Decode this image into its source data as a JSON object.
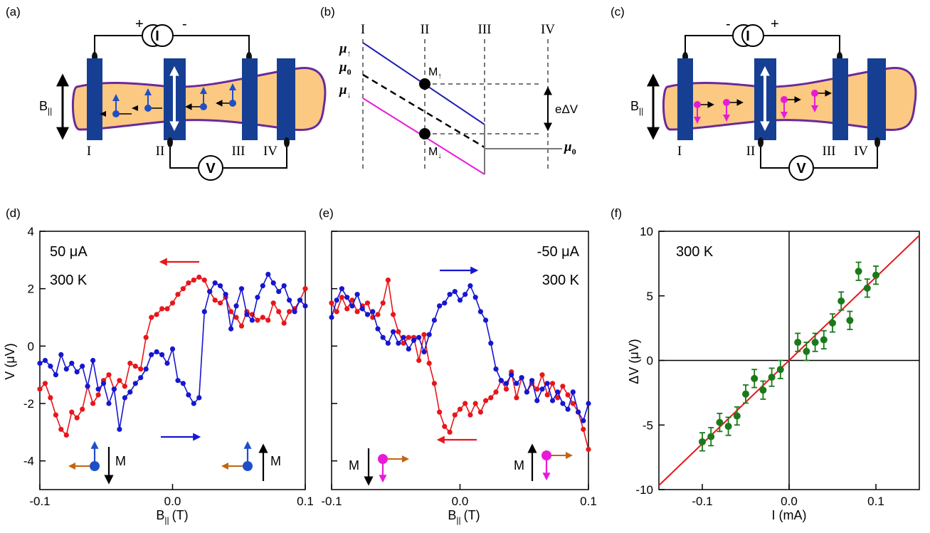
{
  "panels": {
    "a": {
      "label": "(a)",
      "source_plus": "+",
      "source_minus": "-",
      "source_symbol": "I",
      "meter_symbol": "V",
      "field_label_main": "B",
      "field_label_sub": "||",
      "contacts": [
        "I",
        "II",
        "III",
        "IV"
      ]
    },
    "b": {
      "label": "(b)",
      "columns": [
        "I",
        "II",
        "III",
        "IV"
      ],
      "mu_up": "μ",
      "mu_up_sub": "↑",
      "mu_zero": "μ",
      "mu_zero_sub": "0",
      "mu_down": "μ",
      "mu_down_sub": "↓",
      "mu_right": "μ",
      "mu_right_sub": "0",
      "m_up": "M",
      "m_up_sub": "↑",
      "m_down": "M",
      "m_down_sub": "↓",
      "delta_label": "eΔV",
      "colors": {
        "up": "#1f1fb4",
        "down": "#e81ad8",
        "zero": "#000000",
        "dash": "#777777"
      }
    },
    "c": {
      "label": "(c)",
      "source_plus": "+",
      "source_minus": "-",
      "source_symbol": "I",
      "meter_symbol": "V",
      "field_label_main": "B",
      "field_label_sub": "||",
      "contacts": [
        "I",
        "II",
        "III",
        "IV"
      ]
    },
    "d": {
      "label": "(d)",
      "current": "50 μA",
      "temp": "300 K",
      "m_label": "M"
    },
    "e": {
      "label": "(e)",
      "current": "-50 μA",
      "temp": "300 K",
      "m_label": "M"
    },
    "f": {
      "label": "(f)",
      "temp": "300 K"
    }
  },
  "colors": {
    "channel_fill": "#fbc982",
    "channel_stroke": "#6a2a9a",
    "contact": "#163f93",
    "spin_blue": "#1f4fc8",
    "spin_magenta": "#e81ad8",
    "sweep_red": "#e8161a",
    "sweep_blue": "#1616d0",
    "fit_green": "#1a7a1a",
    "arrow_brown": "#c0660e"
  },
  "chart_data": [
    {
      "type": "line",
      "panel": "d",
      "xlabel_main": "B",
      "xlabel_sub": "||",
      "xlabel_unit": "(T)",
      "ylabel": "V (μV)",
      "xlim": [
        -0.1,
        0.1
      ],
      "ylim": [
        -5,
        4
      ],
      "xticks": [
        "-0.1",
        "0.0",
        "0.1"
      ],
      "yticks": [
        "-4",
        "-2",
        "0",
        "2",
        "4"
      ],
      "series": [
        {
          "color": "#e8161a",
          "sweep": "decreasing",
          "x": [
            -0.1,
            -0.096,
            -0.092,
            -0.088,
            -0.084,
            -0.08,
            -0.076,
            -0.072,
            -0.068,
            -0.064,
            -0.06,
            -0.056,
            -0.052,
            -0.048,
            -0.044,
            -0.04,
            -0.036,
            -0.032,
            -0.028,
            -0.024,
            -0.02,
            -0.016,
            -0.012,
            -0.008,
            -0.004,
            0.0,
            0.004,
            0.008,
            0.012,
            0.016,
            0.02,
            0.024,
            0.028,
            0.032,
            0.036,
            0.04,
            0.044,
            0.048,
            0.052,
            0.056,
            0.06,
            0.064,
            0.068,
            0.072,
            0.076,
            0.08,
            0.084,
            0.088,
            0.092,
            0.096,
            0.1
          ],
          "y": [
            -1.5,
            -1.3,
            -1.8,
            -2.4,
            -2.9,
            -3.1,
            -2.3,
            -2.5,
            -2.2,
            -1.4,
            -2.0,
            -1.7,
            -1.2,
            -1.0,
            -1.5,
            -1.2,
            -1.4,
            -0.6,
            -0.7,
            -0.8,
            0.3,
            1.0,
            1.1,
            1.3,
            1.3,
            1.5,
            1.8,
            2.0,
            2.2,
            2.3,
            2.4,
            2.3,
            1.9,
            1.6,
            1.5,
            1.7,
            1.2,
            1.0,
            0.7,
            1.2,
            1.1,
            0.9,
            1.0,
            0.9,
            1.5,
            1.2,
            0.8,
            1.2,
            1.3,
            1.6,
            2.0
          ]
        },
        {
          "color": "#1616d0",
          "sweep": "increasing",
          "x": [
            -0.1,
            -0.096,
            -0.092,
            -0.088,
            -0.084,
            -0.08,
            -0.076,
            -0.072,
            -0.068,
            -0.064,
            -0.06,
            -0.056,
            -0.052,
            -0.048,
            -0.044,
            -0.04,
            -0.036,
            -0.032,
            -0.028,
            -0.024,
            -0.02,
            -0.016,
            -0.012,
            -0.008,
            -0.004,
            0.0,
            0.004,
            0.008,
            0.012,
            0.016,
            0.02,
            0.024,
            0.028,
            0.032,
            0.036,
            0.04,
            0.044,
            0.048,
            0.052,
            0.056,
            0.06,
            0.064,
            0.068,
            0.072,
            0.076,
            0.08,
            0.084,
            0.088,
            0.092,
            0.096,
            0.1
          ],
          "y": [
            -0.6,
            -0.5,
            -0.7,
            -1.0,
            -0.3,
            -0.8,
            -0.6,
            -0.9,
            -0.7,
            -1.4,
            -0.5,
            -1.5,
            -1.3,
            -2.0,
            -1.5,
            -2.9,
            -1.8,
            -1.6,
            -1.3,
            -1.1,
            -0.8,
            -0.3,
            -0.2,
            -0.3,
            -0.6,
            -0.1,
            -1.2,
            -1.3,
            -1.7,
            -2.0,
            -1.8,
            1.2,
            1.9,
            2.2,
            2.1,
            1.8,
            0.6,
            1.4,
            2.0,
            1.1,
            0.9,
            1.7,
            2.1,
            2.5,
            2.2,
            1.9,
            2.1,
            1.6,
            1.2,
            1.6,
            1.4
          ]
        }
      ]
    },
    {
      "type": "line",
      "panel": "e",
      "xlabel_main": "B",
      "xlabel_sub": "||",
      "xlabel_unit": "(T)",
      "xlim": [
        -0.1,
        0.1
      ],
      "ylim": [
        -5,
        4
      ],
      "xticks": [
        "-0.1",
        "0.0",
        "0.1"
      ],
      "series": [
        {
          "color": "#e8161a",
          "sweep": "decreasing",
          "x": [
            -0.1,
            -0.096,
            -0.092,
            -0.088,
            -0.084,
            -0.08,
            -0.076,
            -0.072,
            -0.068,
            -0.064,
            -0.06,
            -0.056,
            -0.052,
            -0.048,
            -0.044,
            -0.04,
            -0.036,
            -0.032,
            -0.028,
            -0.024,
            -0.02,
            -0.016,
            -0.012,
            -0.008,
            -0.004,
            0.0,
            0.004,
            0.008,
            0.012,
            0.016,
            0.02,
            0.024,
            0.028,
            0.032,
            0.036,
            0.04,
            0.044,
            0.048,
            0.052,
            0.056,
            0.06,
            0.064,
            0.068,
            0.072,
            0.076,
            0.08,
            0.084,
            0.088,
            0.092,
            0.096,
            0.1
          ],
          "y": [
            1.5,
            1.2,
            1.7,
            1.3,
            1.6,
            1.2,
            1.4,
            1.5,
            1.0,
            1.1,
            1.5,
            2.3,
            1.1,
            0.5,
            0.1,
            0.3,
            0.3,
            -0.5,
            0.4,
            -0.6,
            -1.3,
            -2.3,
            -2.8,
            -3.0,
            -2.4,
            -2.2,
            -2.0,
            -2.4,
            -2.0,
            -2.3,
            -1.9,
            -1.8,
            -1.6,
            -1.2,
            -1.5,
            -0.9,
            -1.8,
            -1.1,
            -1.6,
            -1.3,
            -1.5,
            -1.0,
            -1.7,
            -1.3,
            -1.8,
            -1.4,
            -1.7,
            -2.0,
            -2.3,
            -2.9,
            -3.6
          ]
        },
        {
          "color": "#1616d0",
          "sweep": "increasing",
          "x": [
            -0.1,
            -0.096,
            -0.092,
            -0.088,
            -0.084,
            -0.08,
            -0.076,
            -0.072,
            -0.068,
            -0.064,
            -0.06,
            -0.056,
            -0.052,
            -0.048,
            -0.044,
            -0.04,
            -0.036,
            -0.032,
            -0.028,
            -0.024,
            -0.02,
            -0.016,
            -0.012,
            -0.008,
            -0.004,
            0.0,
            0.004,
            0.008,
            0.012,
            0.016,
            0.02,
            0.024,
            0.028,
            0.032,
            0.036,
            0.04,
            0.044,
            0.048,
            0.052,
            0.056,
            0.06,
            0.064,
            0.068,
            0.072,
            0.076,
            0.08,
            0.084,
            0.088,
            0.092,
            0.096,
            0.1
          ],
          "y": [
            1.0,
            1.6,
            2.0,
            1.7,
            1.4,
            1.8,
            1.3,
            1.1,
            1.2,
            0.6,
            0.3,
            0.1,
            0.5,
            0.1,
            0.3,
            -0.1,
            0.2,
            0.3,
            -0.2,
            0.4,
            0.9,
            1.4,
            1.5,
            1.8,
            1.9,
            1.6,
            1.8,
            2.1,
            1.7,
            1.2,
            0.9,
            0.1,
            -0.8,
            -1.2,
            -1.3,
            -1.0,
            -1.3,
            -1.1,
            -1.6,
            -1.2,
            -1.9,
            -1.5,
            -1.3,
            -1.9,
            -1.6,
            -2.0,
            -2.2,
            -1.6,
            -2.3,
            -2.6,
            -2.0
          ]
        }
      ]
    },
    {
      "type": "scatter",
      "panel": "f",
      "xlabel": "I (mA)",
      "ylabel": "ΔV (μV)",
      "xlim": [
        -0.15,
        0.15
      ],
      "ylim": [
        -10,
        10
      ],
      "xticks": [
        "-0.1",
        "0.0",
        "0.1"
      ],
      "yticks": [
        "-10",
        "-5",
        "0",
        "5",
        "10"
      ],
      "points": {
        "x": [
          -0.1,
          -0.09,
          -0.08,
          -0.07,
          -0.06,
          -0.05,
          -0.04,
          -0.03,
          -0.02,
          -0.01,
          0.01,
          0.02,
          0.03,
          0.04,
          0.05,
          0.06,
          0.07,
          0.08,
          0.09,
          0.1
        ],
        "y": [
          -6.3,
          -5.9,
          -4.8,
          -5.1,
          -4.3,
          -2.6,
          -1.4,
          -2.3,
          -1.3,
          -0.7,
          1.4,
          0.7,
          1.4,
          1.6,
          2.9,
          4.6,
          3.1,
          6.9,
          5.6,
          6.6
        ],
        "err": [
          0.7,
          0.7,
          0.7,
          0.7,
          0.7,
          0.7,
          0.7,
          0.7,
          0.7,
          0.7,
          0.7,
          0.7,
          0.7,
          0.7,
          0.7,
          0.7,
          0.7,
          0.7,
          0.7,
          0.7
        ]
      },
      "fit": {
        "slope": 64.5,
        "intercept": 0.0,
        "color": "#e8161a"
      }
    }
  ]
}
